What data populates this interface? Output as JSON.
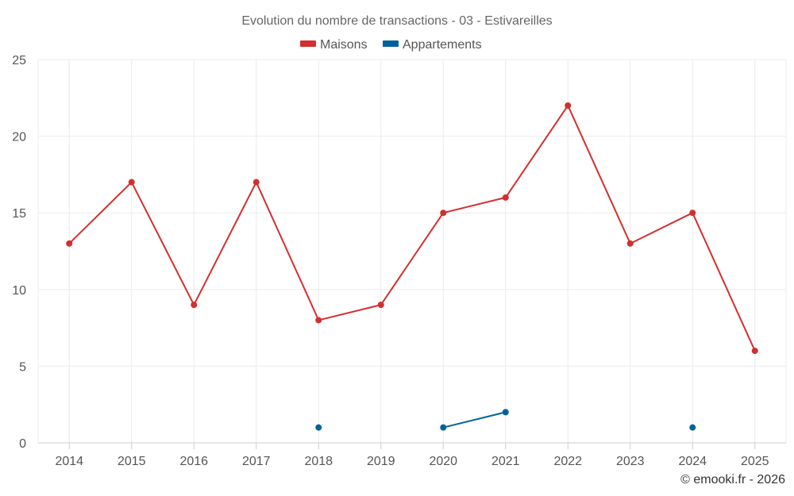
{
  "chart_data": {
    "type": "line",
    "title": "Evolution du nombre de transactions - 03 - Estivareilles",
    "categories": [
      "2014",
      "2015",
      "2016",
      "2017",
      "2018",
      "2019",
      "2020",
      "2021",
      "2022",
      "2023",
      "2024",
      "2025"
    ],
    "ylim": [
      0,
      25
    ],
    "yticks": [
      "0",
      "5",
      "10",
      "15",
      "20",
      "25"
    ],
    "grid": true,
    "legend_position": "top-center",
    "series": [
      {
        "name": "Maisons",
        "color": "#d32f2f",
        "values": [
          13,
          17,
          9,
          17,
          8,
          9,
          15,
          16,
          22,
          13,
          15,
          6
        ]
      },
      {
        "name": "Appartements",
        "color": "#01629b",
        "values": [
          null,
          null,
          null,
          null,
          1,
          null,
          1,
          2,
          null,
          null,
          1,
          null
        ]
      }
    ],
    "credit": "© emooki.fr - 2026"
  }
}
